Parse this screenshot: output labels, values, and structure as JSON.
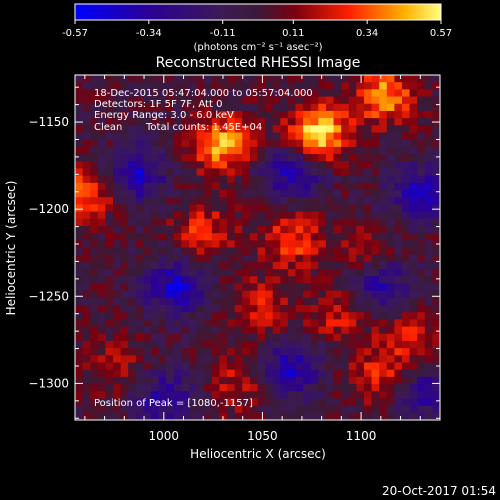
{
  "chart_data": {
    "type": "heatmap",
    "title": "Reconstructed RHESSI Image",
    "xlabel": "Heliocentric X (arcsec)",
    "ylabel": "Heliocentric Y (arcsec)",
    "xlim": [
      955,
      1140
    ],
    "ylim": [
      -1321,
      -1123
    ],
    "x_ticks": [
      1000,
      1050,
      1100
    ],
    "y_ticks": [
      -1150,
      -1200,
      -1250,
      -1300
    ],
    "colorbar": {
      "range": [
        -0.57,
        0.57
      ],
      "tick_values": [
        -0.57,
        -0.34,
        -0.11,
        0.11,
        0.34,
        0.57
      ],
      "tick_labels": [
        "-0.57",
        "-0.34",
        "-0.11",
        "0.11",
        "0.34",
        "0.57"
      ],
      "unit_label": "(photons cm⁻² s⁻¹ asec⁻²)"
    },
    "grid": false,
    "annotations": [
      "18-Dec-2015 05:47:04.000 to 05:57:04.000",
      "Detectors: 1F 5F 7F, Att 0",
      "Energy Range: 3.0 - 6.0 keV",
      "Clean",
      "Total counts: 1.45E+04",
      "Position of Peak = [1080,-1157]"
    ],
    "peak_position": [
      1080,
      -1157
    ],
    "features": [
      {
        "x": 1078,
        "y": -1157,
        "value": 0.57
      },
      {
        "x": 1112,
        "y": -1135,
        "value": 0.42
      },
      {
        "x": 1030,
        "y": -1163,
        "value": 0.45
      },
      {
        "x": 960,
        "y": -1190,
        "value": 0.4
      },
      {
        "x": 1020,
        "y": -1212,
        "value": 0.26
      },
      {
        "x": 1065,
        "y": -1218,
        "value": 0.3
      },
      {
        "x": 1100,
        "y": -1225,
        "value": 0.16
      },
      {
        "x": 1050,
        "y": -1255,
        "value": 0.24
      },
      {
        "x": 1090,
        "y": -1262,
        "value": 0.22
      },
      {
        "x": 1125,
        "y": -1272,
        "value": 0.2
      },
      {
        "x": 1110,
        "y": -1295,
        "value": 0.28
      },
      {
        "x": 1038,
        "y": -1300,
        "value": 0.2
      },
      {
        "x": 975,
        "y": -1290,
        "value": 0.18
      },
      {
        "x": 985,
        "y": -1180,
        "value": -0.42
      },
      {
        "x": 1065,
        "y": -1178,
        "value": -0.4
      },
      {
        "x": 1130,
        "y": -1190,
        "value": -0.38
      },
      {
        "x": 1005,
        "y": -1245,
        "value": -0.45
      },
      {
        "x": 1110,
        "y": -1245,
        "value": -0.35
      },
      {
        "x": 1065,
        "y": -1292,
        "value": -0.4
      },
      {
        "x": 1000,
        "y": -1308,
        "value": -0.35
      },
      {
        "x": 1132,
        "y": -1305,
        "value": -0.32
      }
    ]
  },
  "footer": {
    "timestamp": "20-Oct-2017 01:54"
  }
}
